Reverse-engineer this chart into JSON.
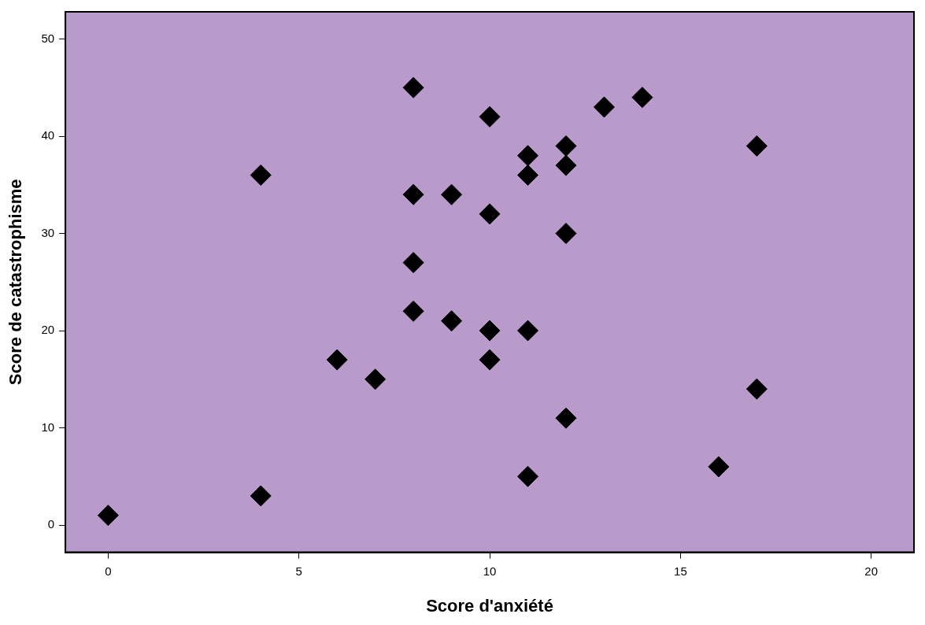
{
  "chart_data": {
    "type": "scatter",
    "xlabel": "Score d'anxiété",
    "ylabel": "Score de catastrophisme",
    "x": [
      0,
      4,
      4,
      6,
      7,
      8,
      8,
      8,
      8,
      9,
      9,
      10,
      10,
      10,
      10,
      11,
      11,
      11,
      11,
      12,
      12,
      12,
      12,
      13,
      14,
      16,
      17,
      17
    ],
    "series": [
      {
        "color": "#000000",
        "values": [
          1,
          3,
          36,
          17,
          15,
          45,
          34,
          27,
          22,
          34,
          21,
          42,
          32,
          20,
          17,
          38,
          36,
          20,
          5,
          39,
          37,
          30,
          11,
          43,
          44,
          6,
          39,
          14
        ]
      }
    ],
    "xlim": [
      -1.12,
      21.12
    ],
    "xticks": [
      0,
      5,
      10,
      15,
      20
    ],
    "ylim": [
      -2.8,
      52.8
    ],
    "yticks": [
      0,
      10,
      20,
      30,
      40,
      50
    ],
    "marker": "diamond",
    "grid": false,
    "legend": false
  }
}
